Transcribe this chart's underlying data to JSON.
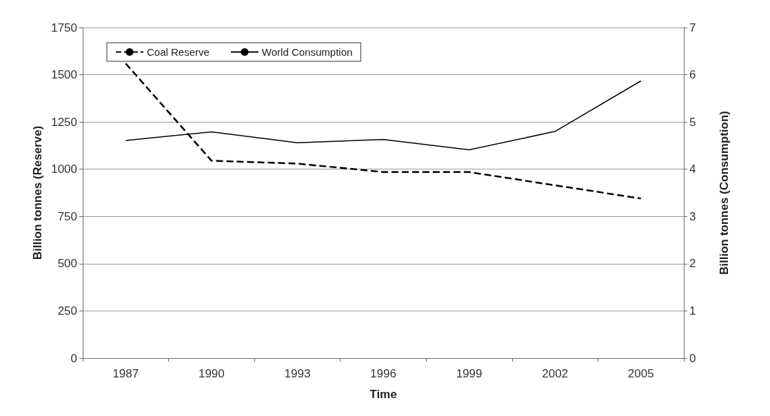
{
  "chart_data": {
    "type": "line",
    "xlabel": "Time",
    "ylabel": "Billion tonnes (Reserve)",
    "y2label": "Billion tonnes (Consumption)",
    "categories": [
      "1987",
      "1990",
      "1993",
      "1996",
      "1999",
      "2002",
      "2005"
    ],
    "series": [
      {
        "name": "Coal Reserve",
        "color": "#000000",
        "line_style": "dashed",
        "values": [
          1560,
          1045,
          1030,
          985,
          985,
          915,
          845
        ]
      },
      {
        "name": "World Consumption",
        "color": "#000000",
        "line_style": "solid",
        "axis": "y2",
        "values": [
          4.61,
          4.79,
          4.56,
          4.63,
          4.41,
          4.8,
          5.87
        ]
      }
    ],
    "ylim": [
      0,
      1750
    ],
    "yticks": [
      0,
      250,
      500,
      750,
      1000,
      1250,
      1500,
      1750
    ],
    "y2lim": [
      0,
      7
    ],
    "y2ticks": [
      0,
      1,
      2,
      3,
      4,
      5,
      6,
      7
    ],
    "grid": "y",
    "legend": "top left",
    "marker": "none"
  }
}
